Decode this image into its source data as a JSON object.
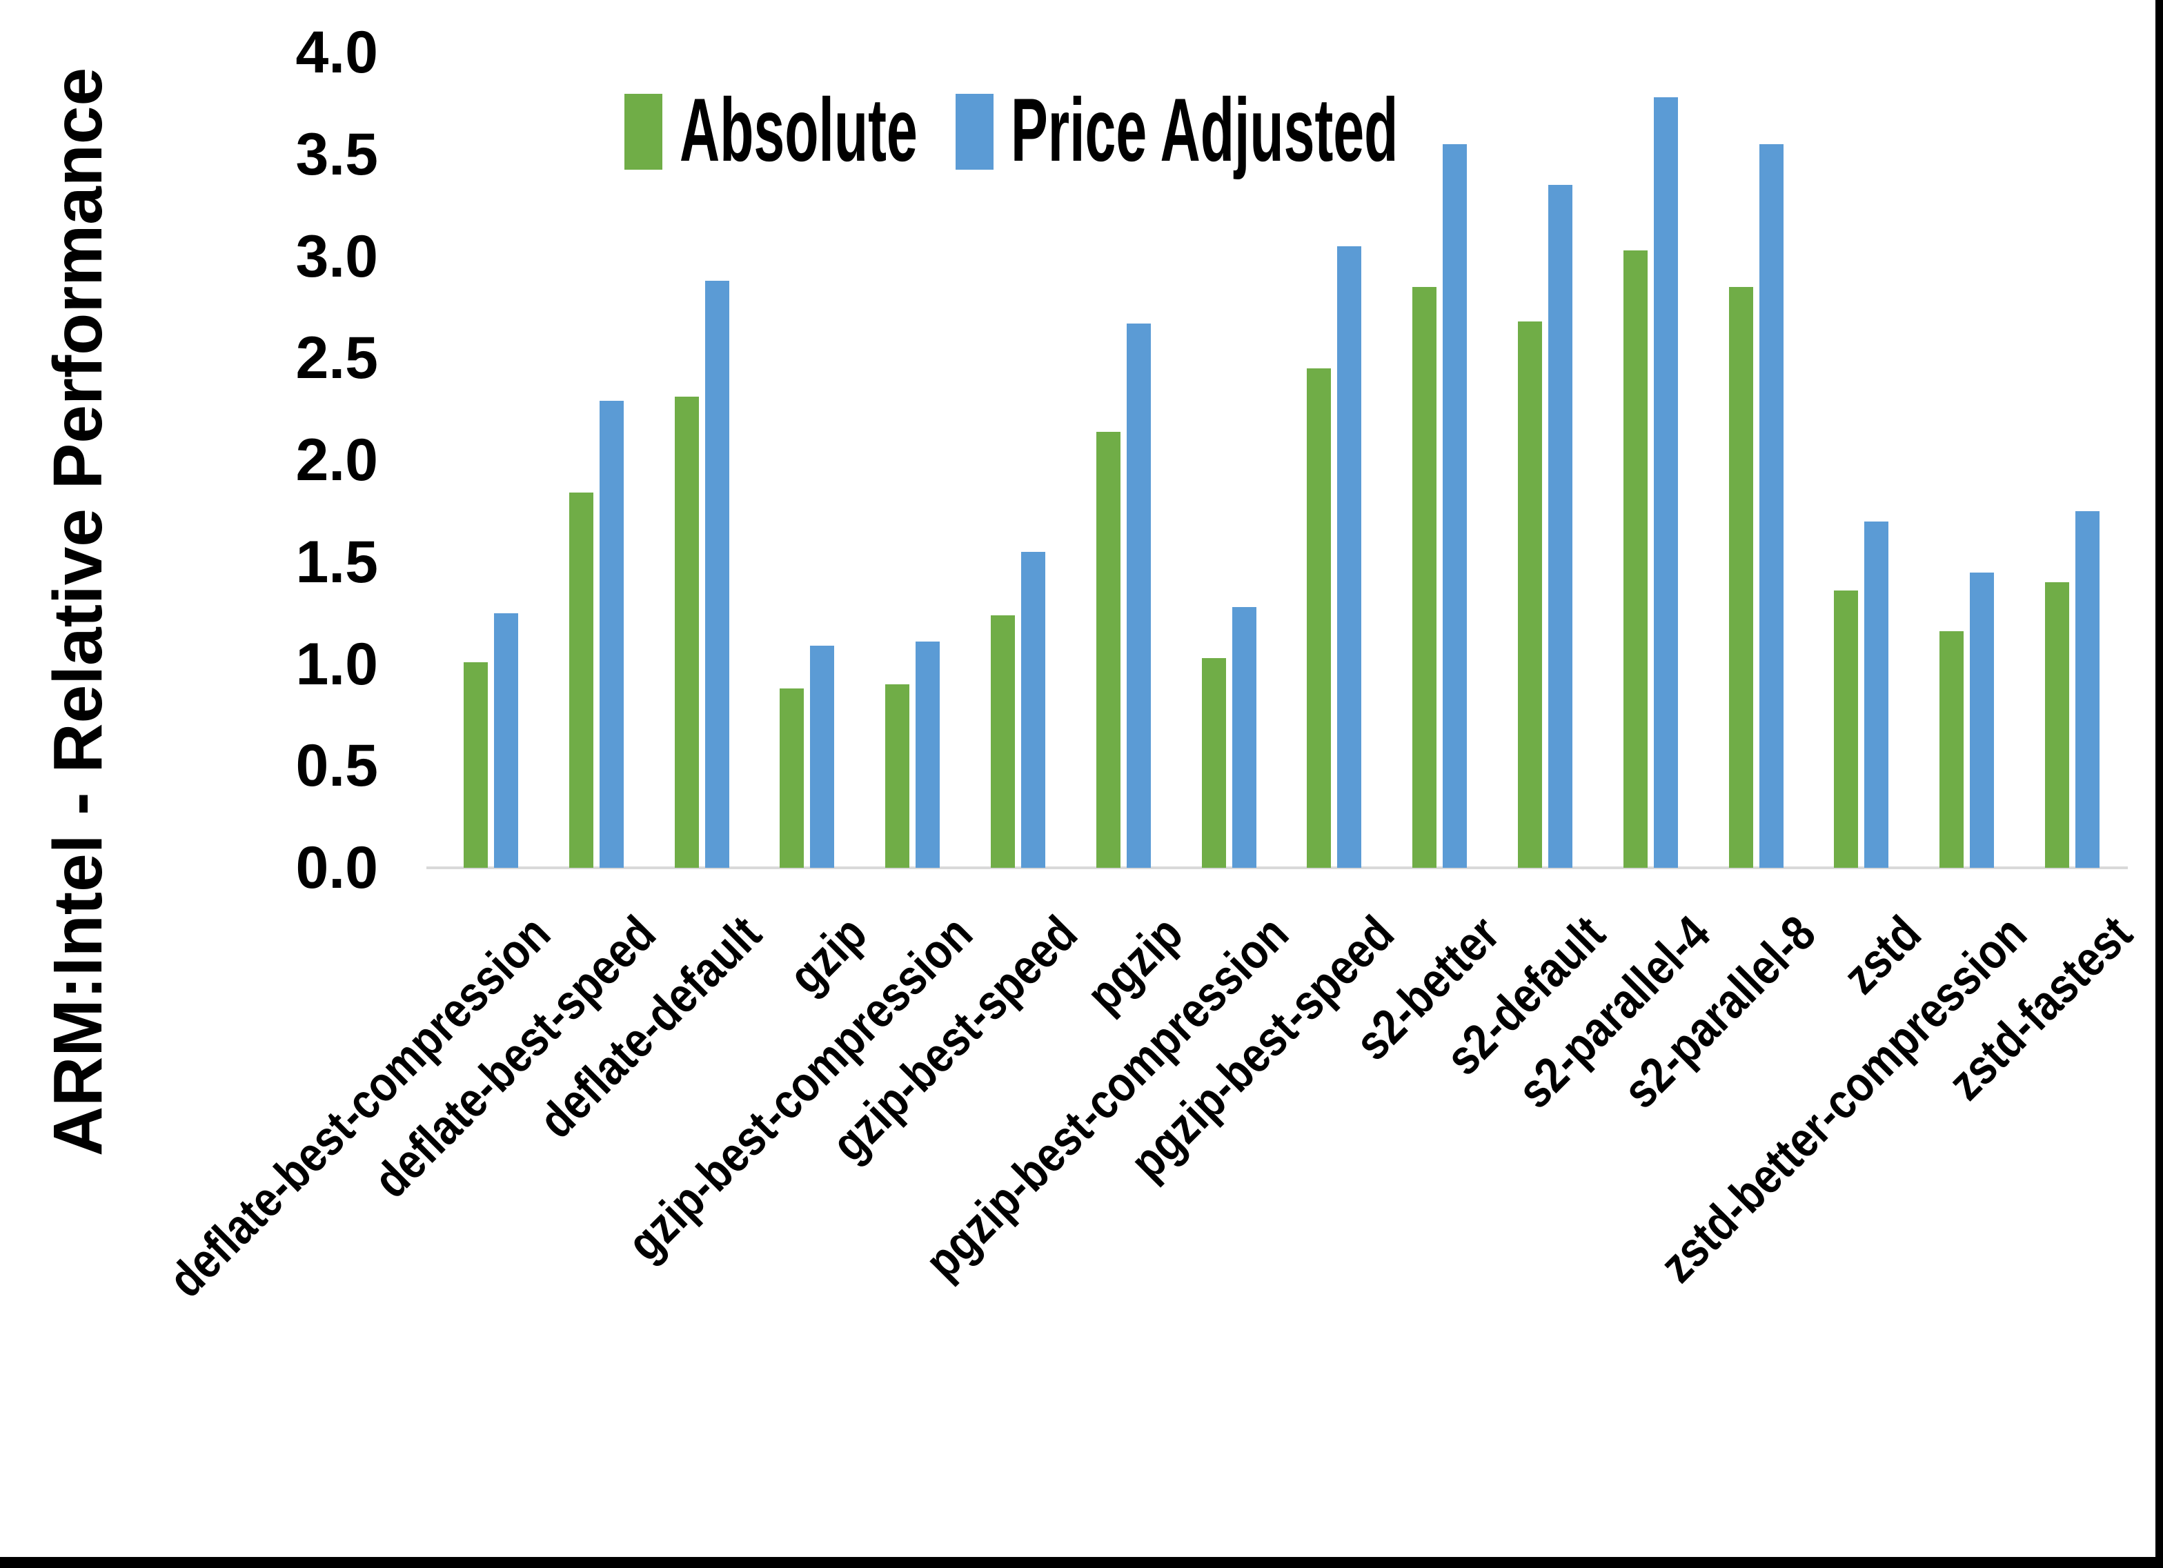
{
  "window": {
    "background": "#FFFFFF",
    "border_color": "#000000"
  },
  "chart_data": {
    "type": "bar",
    "title": "",
    "xlabel": "",
    "ylabel": "ARM:Intel - Relative Performance",
    "ylim": [
      0.0,
      4.0
    ],
    "ytick_step": 0.5,
    "yticks": [
      "0.0",
      "0.5",
      "1.0",
      "1.5",
      "2.0",
      "2.5",
      "3.0",
      "3.5",
      "4.0"
    ],
    "grid": false,
    "legend_position": "top-center",
    "axis_color": "#D9D9D9",
    "text_color": "#000000",
    "categories": [
      "deflate-best-compression",
      "deflate-best-speed",
      "deflate-default",
      "gzip",
      "gzip-best-compression",
      "gzip-best-speed",
      "pgzip",
      "pgzip-best-compression",
      "pgzip-best-speed",
      "s2-better",
      "s2-default",
      "s2-parallel-4",
      "s2-parallel-8",
      "zstd",
      "zstd-better-compression",
      "zstd-fastest"
    ],
    "series": [
      {
        "name": "Absolute",
        "color": "#70AD47",
        "values": [
          1.01,
          1.84,
          2.31,
          0.88,
          0.9,
          1.24,
          2.14,
          1.03,
          2.45,
          2.85,
          2.68,
          3.03,
          2.85,
          1.36,
          1.16,
          1.4
        ]
      },
      {
        "name": "Price Adjusted",
        "color": "#5B9BD5",
        "values": [
          1.25,
          2.29,
          2.88,
          1.09,
          1.11,
          1.55,
          2.67,
          1.28,
          3.05,
          3.55,
          3.35,
          3.78,
          3.55,
          1.7,
          1.45,
          1.75
        ]
      }
    ]
  }
}
